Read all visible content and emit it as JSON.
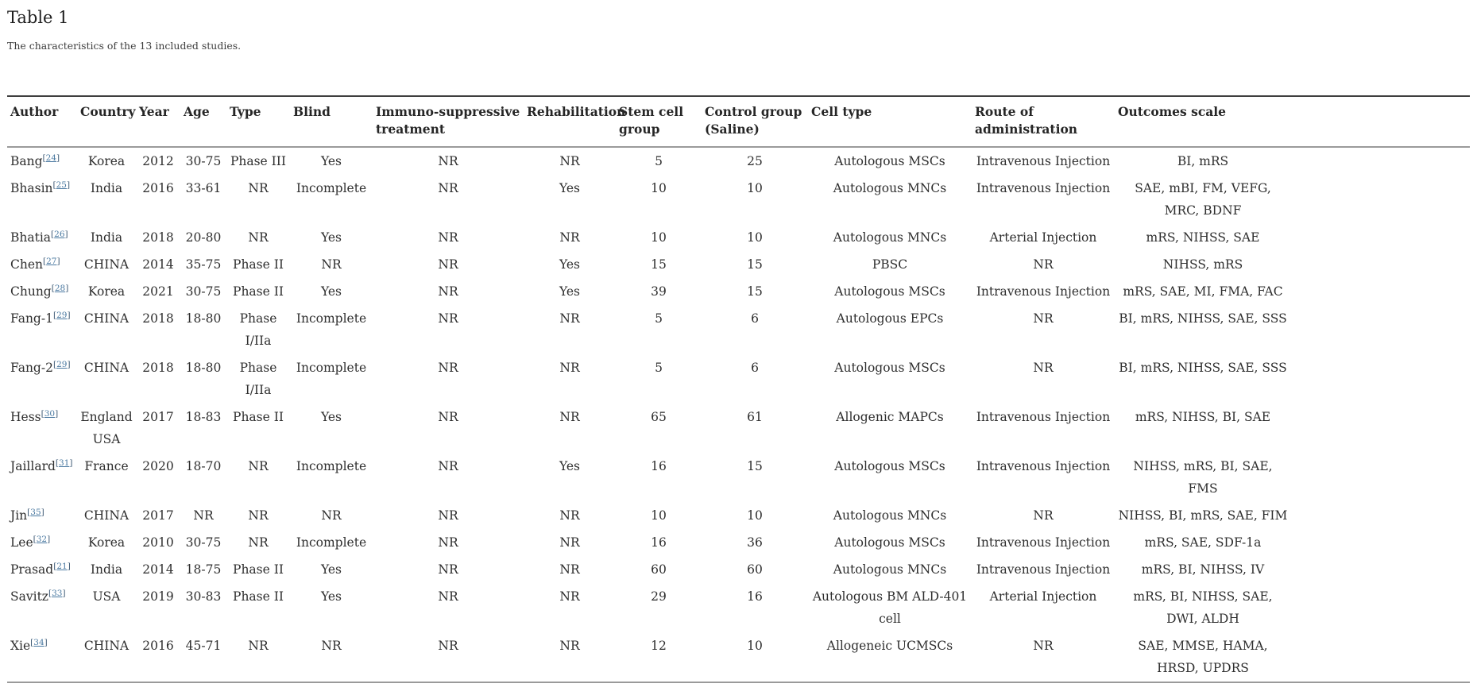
{
  "page": {
    "title": "Table 1",
    "caption": "The characteristics of the 13 included studies."
  },
  "colors": {
    "citation_link": "#4a79a1"
  },
  "table": {
    "columns": [
      "Author",
      "Country",
      "Year",
      "Age",
      "Type",
      "Blind",
      "Immuno-suppressive treatment",
      "Rehabilitation",
      "Stem cell group",
      "Control group (Saline)",
      "Cell type",
      "Route of administration",
      "Outcomes scale"
    ],
    "row_fields": [
      "country",
      "year",
      "age",
      "type",
      "blind",
      "immuno_suppressive",
      "rehabilitation",
      "stem_cell_group",
      "control_group",
      "cell_type",
      "route",
      "outcomes_scale"
    ],
    "rows": [
      {
        "author": "Bang",
        "ref": "24",
        "country": "Korea",
        "year": "2012",
        "age": "30-75",
        "type": "Phase III",
        "blind": "Yes",
        "immuno_suppressive": "NR",
        "rehabilitation": "NR",
        "stem_cell_group": "5",
        "control_group": "25",
        "cell_type": "Autologous MSCs",
        "route": "Intravenous Injection",
        "outcomes_scale": "BI, mRS"
      },
      {
        "author": "Bhasin",
        "ref": "25",
        "country": "India",
        "year": "2016",
        "age": "33-61",
        "type": "NR",
        "blind": "Incomplete",
        "immuno_suppressive": "NR",
        "rehabilitation": "Yes",
        "stem_cell_group": "10",
        "control_group": "10",
        "cell_type": "Autologous MNCs",
        "route": "Intravenous Injection",
        "outcomes_scale": "SAE, mBI, FM, VEFG, MRC, BDNF"
      },
      {
        "author": "Bhatia",
        "ref": "26",
        "country": "India",
        "year": "2018",
        "age": "20-80",
        "type": "NR",
        "blind": "Yes",
        "immuno_suppressive": "NR",
        "rehabilitation": "NR",
        "stem_cell_group": "10",
        "control_group": "10",
        "cell_type": "Autologous MNCs",
        "route": "Arterial Injection",
        "outcomes_scale": "mRS, NIHSS, SAE"
      },
      {
        "author": "Chen",
        "ref": "27",
        "country": "CHINA",
        "year": "2014",
        "age": "35-75",
        "type": "Phase II",
        "blind": "NR",
        "immuno_suppressive": "NR",
        "rehabilitation": "Yes",
        "stem_cell_group": "15",
        "control_group": "15",
        "cell_type": "PBSC",
        "route": "NR",
        "outcomes_scale": "NIHSS, mRS"
      },
      {
        "author": "Chung",
        "ref": "28",
        "country": "Korea",
        "year": "2021",
        "age": "30-75",
        "type": "Phase II",
        "blind": "Yes",
        "immuno_suppressive": "NR",
        "rehabilitation": "Yes",
        "stem_cell_group": "39",
        "control_group": "15",
        "cell_type": "Autologous MSCs",
        "route": "Intravenous Injection",
        "outcomes_scale": "mRS, SAE, MI, FMA, FAC"
      },
      {
        "author": "Fang-1",
        "ref": "29",
        "country": "CHINA",
        "year": "2018",
        "age": "18-80",
        "type": "Phase I/IIa",
        "blind": "Incomplete",
        "immuno_suppressive": "NR",
        "rehabilitation": "NR",
        "stem_cell_group": "5",
        "control_group": "6",
        "cell_type": "Autologous EPCs",
        "route": "NR",
        "outcomes_scale": "BI, mRS, NIHSS, SAE, SSS"
      },
      {
        "author": "Fang-2",
        "ref": "29",
        "country": "CHINA",
        "year": "2018",
        "age": "18-80",
        "type": "Phase I/IIa",
        "blind": "Incomplete",
        "immuno_suppressive": "NR",
        "rehabilitation": "NR",
        "stem_cell_group": "5",
        "control_group": "6",
        "cell_type": "Autologous MSCs",
        "route": "NR",
        "outcomes_scale": "BI, mRS, NIHSS, SAE, SSS"
      },
      {
        "author": "Hess",
        "ref": "30",
        "country": "England USA",
        "year": "2017",
        "age": "18-83",
        "type": "Phase II",
        "blind": "Yes",
        "immuno_suppressive": "NR",
        "rehabilitation": "NR",
        "stem_cell_group": "65",
        "control_group": "61",
        "cell_type": "Allogenic MAPCs",
        "route": "Intravenous Injection",
        "outcomes_scale": "mRS, NIHSS, BI, SAE"
      },
      {
        "author": "Jaillard",
        "ref": "31",
        "country": "France",
        "year": "2020",
        "age": "18-70",
        "type": "NR",
        "blind": "Incomplete",
        "immuno_suppressive": "NR",
        "rehabilitation": "Yes",
        "stem_cell_group": "16",
        "control_group": "15",
        "cell_type": "Autologous MSCs",
        "route": "Intravenous Injection",
        "outcomes_scale": "NIHSS, mRS, BI, SAE, FMS"
      },
      {
        "author": "Jin",
        "ref": "35",
        "country": "CHINA",
        "year": "2017",
        "age": "NR",
        "type": "NR",
        "blind": "NR",
        "immuno_suppressive": "NR",
        "rehabilitation": "NR",
        "stem_cell_group": "10",
        "control_group": "10",
        "cell_type": "Autologous MNCs",
        "route": "NR",
        "outcomes_scale": "NIHSS, BI, mRS, SAE, FIM"
      },
      {
        "author": "Lee",
        "ref": "32",
        "country": "Korea",
        "year": "2010",
        "age": "30-75",
        "type": "NR",
        "blind": "Incomplete",
        "immuno_suppressive": "NR",
        "rehabilitation": "NR",
        "stem_cell_group": "16",
        "control_group": "36",
        "cell_type": "Autologous MSCs",
        "route": "Intravenous Injection",
        "outcomes_scale": "mRS, SAE, SDF-1a"
      },
      {
        "author": "Prasad",
        "ref": "21",
        "country": "India",
        "year": "2014",
        "age": "18-75",
        "type": "Phase II",
        "blind": "Yes",
        "immuno_suppressive": "NR",
        "rehabilitation": "NR",
        "stem_cell_group": "60",
        "control_group": "60",
        "cell_type": "Autologous MNCs",
        "route": "Intravenous Injection",
        "outcomes_scale": "mRS, BI, NIHSS, IV"
      },
      {
        "author": "Savitz",
        "ref": "33",
        "country": "USA",
        "year": "2019",
        "age": "30-83",
        "type": "Phase II",
        "blind": "Yes",
        "immuno_suppressive": "NR",
        "rehabilitation": "NR",
        "stem_cell_group": "29",
        "control_group": "16",
        "cell_type": "Autologous BM ALD-401 cell",
        "route": "Arterial Injection",
        "outcomes_scale": "mRS, BI, NIHSS, SAE, DWI, ALDH"
      },
      {
        "author": "Xie",
        "ref": "34",
        "country": "CHINA",
        "year": "2016",
        "age": "45-71",
        "type": "NR",
        "blind": "NR",
        "immuno_suppressive": "NR",
        "rehabilitation": "NR",
        "stem_cell_group": "12",
        "control_group": "10",
        "cell_type": "Allogeneic UCMSCs",
        "route": "NR",
        "outcomes_scale": "SAE, MMSE, HAMA, HRSD, UPDRS"
      }
    ]
  }
}
